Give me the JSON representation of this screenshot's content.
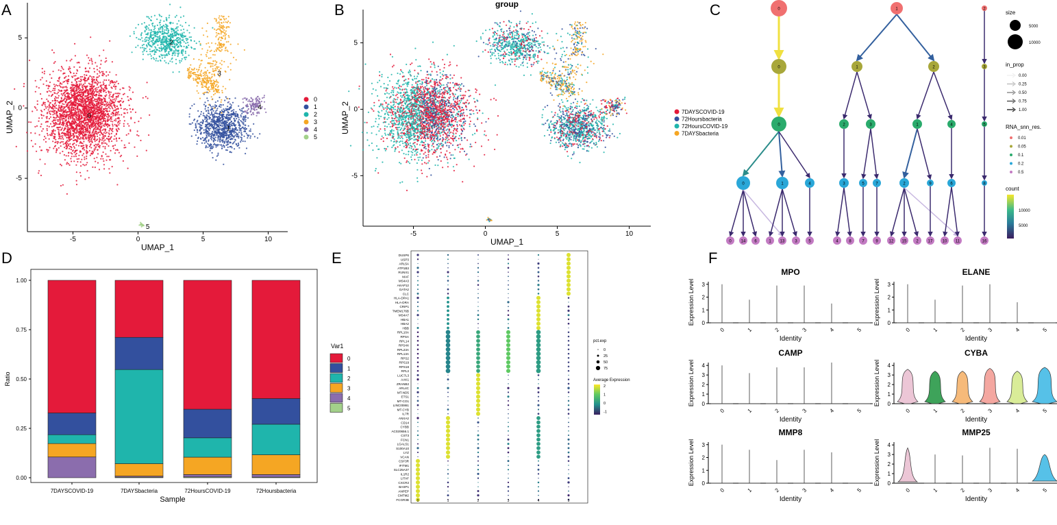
{
  "colors": {
    "c0": "#e41a3a",
    "c1": "#33509e",
    "c2": "#1fb5ac",
    "c3": "#f5a623",
    "c4": "#8b6dad",
    "c5": "#a3d18a",
    "g1": "#e41a3a",
    "g2": "#33509e",
    "g3": "#1fb5ac",
    "g4": "#f5a623"
  },
  "panel_letters": [
    "A",
    "B",
    "C",
    "D",
    "E",
    "F"
  ],
  "chart_data": [
    {
      "id": "A",
      "type": "scatter",
      "xlabel": "UMAP_1",
      "ylabel": "UMAP_2",
      "xticks": [
        -5,
        0,
        5,
        10
      ],
      "yticks": [
        5,
        0,
        -5
      ],
      "xlim": [
        -8.5,
        11.5
      ],
      "ylim": [
        -8.8,
        7.5
      ],
      "legend": [
        "0",
        "1",
        "2",
        "3",
        "4",
        "5"
      ],
      "clusters": [
        {
          "label": "0",
          "c": [
            -4.2,
            -0.4
          ],
          "s": [
            1.9,
            1.9
          ],
          "n": 2600,
          "ci": 0
        },
        {
          "label": "1",
          "c": [
            6.5,
            -1.3
          ],
          "s": [
            1.2,
            1.0
          ],
          "n": 900,
          "ci": 1
        },
        {
          "label": "2",
          "c": [
            2.1,
            4.8
          ],
          "s": [
            1.2,
            0.9
          ],
          "n": 600,
          "ci": 2
        },
        {
          "label": "3",
          "c": [
            5.8,
            2.6
          ],
          "s": [
            0.9,
            1.6
          ],
          "n": 420,
          "ci": 3
        },
        {
          "label": "4",
          "c": [
            8.9,
            0.2
          ],
          "s": [
            0.5,
            0.4
          ],
          "n": 120,
          "ci": 4
        },
        {
          "label": "5",
          "c": [
            0.3,
            -8.3
          ],
          "s": [
            0.1,
            0.1
          ],
          "n": 15,
          "ci": 5
        }
      ]
    },
    {
      "id": "B",
      "type": "scatter",
      "title": "group",
      "xlabel": "UMAP_1",
      "ylabel": "UMAP_2",
      "xticks": [
        -5,
        0,
        5,
        10
      ],
      "yticks": [
        5,
        0,
        -5
      ],
      "xlim": [
        -8.5,
        11.5
      ],
      "ylim": [
        -8.8,
        7.5
      ],
      "legend": [
        "7DAYSCOVID-19",
        "72Hoursbacteria",
        "72HoursCOVID-19",
        "7DAYSbacteria"
      ]
    },
    {
      "id": "C",
      "type": "tree",
      "ylabel_legend": "RNA_snn_res.",
      "levels": [
        "0.01",
        "0.05",
        "0.1",
        "0.2",
        "0.5"
      ],
      "level_colors": [
        "#f07070",
        "#a8a73a",
        "#2aab6c",
        "#2aa7d8",
        "#c37bc3"
      ],
      "size_title": "size",
      "size_values": [
        "5000",
        "10000"
      ],
      "inprop_title": "in_prop",
      "inprop_values": [
        "0.00",
        "0.25",
        "0.50",
        "0.75",
        "1.00"
      ],
      "count_title": "count",
      "count_values": [
        "10000",
        "5000"
      ],
      "nodes": [
        {
          "id": "a0",
          "lvl": 0,
          "label": "0",
          "x": 1137
        },
        {
          "id": "a1",
          "lvl": 0,
          "label": "1",
          "x": 1309
        },
        {
          "id": "a2",
          "lvl": 0,
          "label": "2",
          "x": 1437
        },
        {
          "id": "b0",
          "lvl": 1,
          "label": "0",
          "x": 1137
        },
        {
          "id": "b1",
          "lvl": 1,
          "label": "1",
          "x": 1251
        },
        {
          "id": "b2",
          "lvl": 1,
          "label": "2",
          "x": 1363
        },
        {
          "id": "b3",
          "lvl": 1,
          "label": "3",
          "x": 1437
        },
        {
          "id": "c0",
          "lvl": 2,
          "label": "0",
          "x": 1137
        },
        {
          "id": "c2",
          "lvl": 2,
          "label": "2",
          "x": 1232
        },
        {
          "id": "c3",
          "lvl": 2,
          "label": "3",
          "x": 1271
        },
        {
          "id": "c1",
          "lvl": 2,
          "label": "1",
          "x": 1339
        },
        {
          "id": "c4",
          "lvl": 2,
          "label": "4",
          "x": 1389
        },
        {
          "id": "c5",
          "lvl": 2,
          "label": "5",
          "x": 1437
        },
        {
          "id": "d0",
          "lvl": 3,
          "label": "0",
          "x": 1085
        },
        {
          "id": "d1",
          "lvl": 3,
          "label": "1",
          "x": 1142
        },
        {
          "id": "d4",
          "lvl": 3,
          "label": "4",
          "x": 1182
        },
        {
          "id": "d3",
          "lvl": 3,
          "label": "3",
          "x": 1232
        },
        {
          "id": "d5",
          "lvl": 3,
          "label": "5",
          "x": 1260
        },
        {
          "id": "d7",
          "lvl": 3,
          "label": "7",
          "x": 1280
        },
        {
          "id": "d2",
          "lvl": 3,
          "label": "2",
          "x": 1320
        },
        {
          "id": "d9",
          "lvl": 3,
          "label": "9",
          "x": 1358
        },
        {
          "id": "d6",
          "lvl": 3,
          "label": "6",
          "x": 1389
        },
        {
          "id": "d8",
          "lvl": 3,
          "label": "8",
          "x": 1437
        },
        {
          "id": "e0",
          "lvl": 4,
          "label": "0",
          "x": 1066
        },
        {
          "id": "e14",
          "lvl": 4,
          "label": "14",
          "x": 1085
        },
        {
          "id": "e6",
          "lvl": 4,
          "label": "6",
          "x": 1103
        },
        {
          "id": "e1",
          "lvl": 4,
          "label": "1",
          "x": 1124
        },
        {
          "id": "e13",
          "lvl": 4,
          "label": "13",
          "x": 1142
        },
        {
          "id": "e3",
          "lvl": 4,
          "label": "3",
          "x": 1162
        },
        {
          "id": "e5",
          "lvl": 4,
          "label": "5",
          "x": 1182
        },
        {
          "id": "e4",
          "lvl": 4,
          "label": "4",
          "x": 1222
        },
        {
          "id": "e8",
          "lvl": 4,
          "label": "8",
          "x": 1241
        },
        {
          "id": "e7",
          "lvl": 4,
          "label": "7",
          "x": 1260
        },
        {
          "id": "e9",
          "lvl": 4,
          "label": "9",
          "x": 1280
        },
        {
          "id": "e12",
          "lvl": 4,
          "label": "12",
          "x": 1301
        },
        {
          "id": "e15",
          "lvl": 4,
          "label": "15",
          "x": 1320
        },
        {
          "id": "e2",
          "lvl": 4,
          "label": "2",
          "x": 1339
        },
        {
          "id": "e17",
          "lvl": 4,
          "label": "17",
          "x": 1358
        },
        {
          "id": "e10",
          "lvl": 4,
          "label": "10",
          "x": 1379
        },
        {
          "id": "e11",
          "lvl": 4,
          "label": "11",
          "x": 1398
        },
        {
          "id": "e16",
          "lvl": 4,
          "label": "16",
          "x": 1437
        }
      ],
      "edges": [
        {
          "f": "a0",
          "t": "b0",
          "c": "#f0e040",
          "w": 3
        },
        {
          "f": "a1",
          "t": "b1",
          "c": "#33609e",
          "w": 2
        },
        {
          "f": "a1",
          "t": "b2",
          "c": "#33609e",
          "w": 2
        },
        {
          "f": "a2",
          "t": "b3",
          "c": "#3b2a6e",
          "w": 1.5
        },
        {
          "f": "b0",
          "t": "c0",
          "c": "#f0e040",
          "w": 3
        },
        {
          "f": "b1",
          "t": "c2",
          "c": "#3b2a6e",
          "w": 1.5
        },
        {
          "f": "b1",
          "t": "c3",
          "c": "#3b2a6e",
          "w": 1.5
        },
        {
          "f": "b2",
          "t": "c1",
          "c": "#3b2a6e",
          "w": 1.5
        },
        {
          "f": "b2",
          "t": "c4",
          "c": "#3b2a6e",
          "w": 1.5
        },
        {
          "f": "b3",
          "t": "c5",
          "c": "#3b2a6e",
          "w": 1.5
        },
        {
          "f": "c0",
          "t": "d0",
          "c": "#2a8c8a",
          "w": 2
        },
        {
          "f": "c0",
          "t": "d1",
          "c": "#33609e",
          "w": 2
        },
        {
          "f": "c0",
          "t": "d4",
          "c": "#3b2a6e",
          "w": 1.5
        },
        {
          "f": "c2",
          "t": "d3",
          "c": "#3b2a6e",
          "w": 1.5
        },
        {
          "f": "c3",
          "t": "d5",
          "c": "#3b2a6e",
          "w": 1.5
        },
        {
          "f": "c3",
          "t": "d7",
          "c": "#3b2a6e",
          "w": 1.5
        },
        {
          "f": "c1",
          "t": "d2",
          "c": "#33609e",
          "w": 2
        },
        {
          "f": "c1",
          "t": "d9",
          "c": "#3b2a6e",
          "w": 1.5
        },
        {
          "f": "c4",
          "t": "d6",
          "c": "#3b2a6e",
          "w": 1.5
        },
        {
          "f": "c5",
          "t": "d8",
          "c": "#3b2a6e",
          "w": 1.5
        },
        {
          "f": "d0",
          "t": "e0",
          "c": "#3b2a6e",
          "w": 1.5
        },
        {
          "f": "d0",
          "t": "e14",
          "c": "#3b2a6e",
          "w": 1.5
        },
        {
          "f": "d0",
          "t": "e6",
          "c": "#3b2a6e",
          "w": 1.5
        },
        {
          "f": "d0",
          "t": "e13",
          "c": "#c7b7e0",
          "w": 1.5
        },
        {
          "f": "d1",
          "t": "e1",
          "c": "#3b2a6e",
          "w": 1.5
        },
        {
          "f": "d1",
          "t": "e13",
          "c": "#3b2a6e",
          "w": 1.5
        },
        {
          "f": "d1",
          "t": "e3",
          "c": "#3b2a6e",
          "w": 1.5
        },
        {
          "f": "d4",
          "t": "e5",
          "c": "#3b2a6e",
          "w": 1.5
        },
        {
          "f": "d3",
          "t": "e4",
          "c": "#3b2a6e",
          "w": 1.5
        },
        {
          "f": "d3",
          "t": "e8",
          "c": "#3b2a6e",
          "w": 1.5
        },
        {
          "f": "d5",
          "t": "e7",
          "c": "#3b2a6e",
          "w": 1.5
        },
        {
          "f": "d7",
          "t": "e9",
          "c": "#3b2a6e",
          "w": 1.5
        },
        {
          "f": "d2",
          "t": "e12",
          "c": "#3b2a6e",
          "w": 1.5
        },
        {
          "f": "d2",
          "t": "e15",
          "c": "#3b2a6e",
          "w": 1.5
        },
        {
          "f": "d2",
          "t": "e2",
          "c": "#3b2a6e",
          "w": 1.5
        },
        {
          "f": "d2",
          "t": "e11",
          "c": "#c7b7e0",
          "w": 1.5
        },
        {
          "f": "d9",
          "t": "e17",
          "c": "#3b2a6e",
          "w": 1.5
        },
        {
          "f": "d6",
          "t": "e10",
          "c": "#3b2a6e",
          "w": 1.5
        },
        {
          "f": "d6",
          "t": "e11",
          "c": "#3b2a6e",
          "w": 1.5
        },
        {
          "f": "d8",
          "t": "e16",
          "c": "#3b2a6e",
          "w": 1.5
        }
      ]
    },
    {
      "id": "D",
      "type": "bar",
      "stacked": true,
      "xlabel": "Sample",
      "ylabel": "Ratio",
      "categories": [
        "7DAYSCOVID-19",
        "7DAYSbacteria",
        "72HoursCOVID-19",
        "72Hoursbacteria"
      ],
      "yticks": [
        "0.00",
        "0.25",
        "0.50",
        "0.75",
        "1.00"
      ],
      "legend_title": "Var1",
      "series": [
        {
          "name": "5",
          "values": [
            0.0,
            0.003,
            0.004,
            0.003
          ]
        },
        {
          "name": "4",
          "values": [
            0.105,
            0.005,
            0.012,
            0.013
          ]
        },
        {
          "name": "3",
          "values": [
            0.068,
            0.063,
            0.088,
            0.1
          ]
        },
        {
          "name": "2",
          "values": [
            0.045,
            0.477,
            0.098,
            0.155
          ]
        },
        {
          "name": "1",
          "values": [
            0.11,
            0.163,
            0.145,
            0.13
          ]
        },
        {
          "name": "0",
          "values": [
            0.672,
            0.289,
            0.653,
            0.599
          ]
        }
      ],
      "order_bottom_to_top": [
        "5",
        "4",
        "3",
        "2",
        "1",
        "0"
      ]
    },
    {
      "id": "E",
      "type": "dotplot",
      "xticks": [
        "0",
        "1",
        "2",
        "3",
        "4",
        "5"
      ],
      "genes": [
        "DUSP6",
        "USP3",
        "ARL5A",
        "ATP1B3",
        "RUNX1",
        "MAF",
        "MS4A3",
        "AKAP12",
        "GATA2",
        "CLC",
        "HLA-DPA1",
        "HLA-DRA",
        "CRIP1",
        "TMEM176B",
        "MS4A7",
        "HBA1",
        "HBA2",
        "HBB",
        "RPL10A",
        "RPSA",
        "RPL14",
        "RPS4X",
        "RPL23A",
        "RPL13A",
        "RPS2",
        "RPS19",
        "RPS18",
        "RPL3",
        "LUC7L3",
        "AAK1",
        "ZRANB2",
        "ARL4C",
        "MT-ND5",
        "ETS1",
        "MT-CO1",
        "LINC00861",
        "MT-CYB",
        "IL7R",
        "ANXA2",
        "CD14",
        "CYBB",
        "AC020656.1",
        "CST3",
        "FCN1",
        "LGALS1",
        "S100A10",
        "LYZ",
        "VCAN",
        "CSF3R",
        "IFITM1",
        "SLC25A37",
        "IL1R2",
        "LITAF",
        "CXCR2",
        "BASP1",
        "ANPEP",
        "CMTM2",
        "FCGR3B"
      ],
      "size_title": "pct.exp",
      "size_values": [
        "0",
        "25",
        "50",
        "75"
      ],
      "color_title": "Average Expression",
      "color_values": [
        "2",
        "1",
        "0",
        "-1"
      ]
    },
    {
      "id": "F",
      "type": "violin",
      "xlabel": "Identity",
      "ylabel": "Expression Level",
      "categories": [
        "0",
        "1",
        "2",
        "3",
        "4",
        "5"
      ],
      "panels": [
        {
          "title": "MPO",
          "yticks": [
            "0",
            "1",
            "2",
            "3"
          ],
          "ymax": 3.2,
          "peaks": [
            3.0,
            1.8,
            2.9,
            2.9,
            1.5,
            0.0
          ],
          "shapes": [
            0,
            0,
            0,
            0,
            0,
            0
          ]
        },
        {
          "title": "ELANE",
          "yticks": [
            "0",
            "1",
            "2",
            "3"
          ],
          "ymax": 3.2,
          "peaks": [
            3.0,
            1.8,
            2.9,
            3.0,
            1.6,
            0.0
          ],
          "shapes": [
            0,
            0,
            0,
            0,
            0,
            0
          ]
        },
        {
          "title": "CAMP",
          "yticks": [
            "0",
            "1",
            "2",
            "3",
            "4"
          ],
          "ymax": 4.3,
          "peaks": [
            4.0,
            3.2,
            3.8,
            3.8,
            4.3,
            0.0
          ],
          "shapes": [
            0,
            0,
            0,
            0,
            0,
            0
          ]
        },
        {
          "title": "CYBA",
          "yticks": [
            "0",
            "1",
            "2",
            "3",
            "4"
          ],
          "ymax": 4.3,
          "peaks": [
            3.6,
            3.4,
            3.4,
            3.7,
            3.4,
            3.8
          ],
          "shapes": [
            1,
            1,
            1,
            1,
            1,
            1
          ]
        },
        {
          "title": "MMP8",
          "yticks": [
            "0",
            "1",
            "2",
            "3"
          ],
          "ymax": 3.2,
          "peaks": [
            3.0,
            2.6,
            1.8,
            2.6,
            2.4,
            0.0
          ],
          "shapes": [
            0,
            0,
            0,
            0,
            0,
            0
          ]
        },
        {
          "title": "MMP25",
          "yticks": [
            "0",
            "1",
            "2",
            "3",
            "4"
          ],
          "ymax": 4.3,
          "peaks": [
            3.7,
            3.0,
            2.9,
            3.7,
            3.6,
            3.0
          ],
          "shapes": [
            2,
            0,
            0,
            0,
            0,
            3
          ]
        }
      ],
      "violin_colors": [
        "#ecc6d6",
        "#3ea35a",
        "#f6ba7a",
        "#f4a7a0",
        "#d9ec98",
        "#56c1e8"
      ]
    }
  ]
}
